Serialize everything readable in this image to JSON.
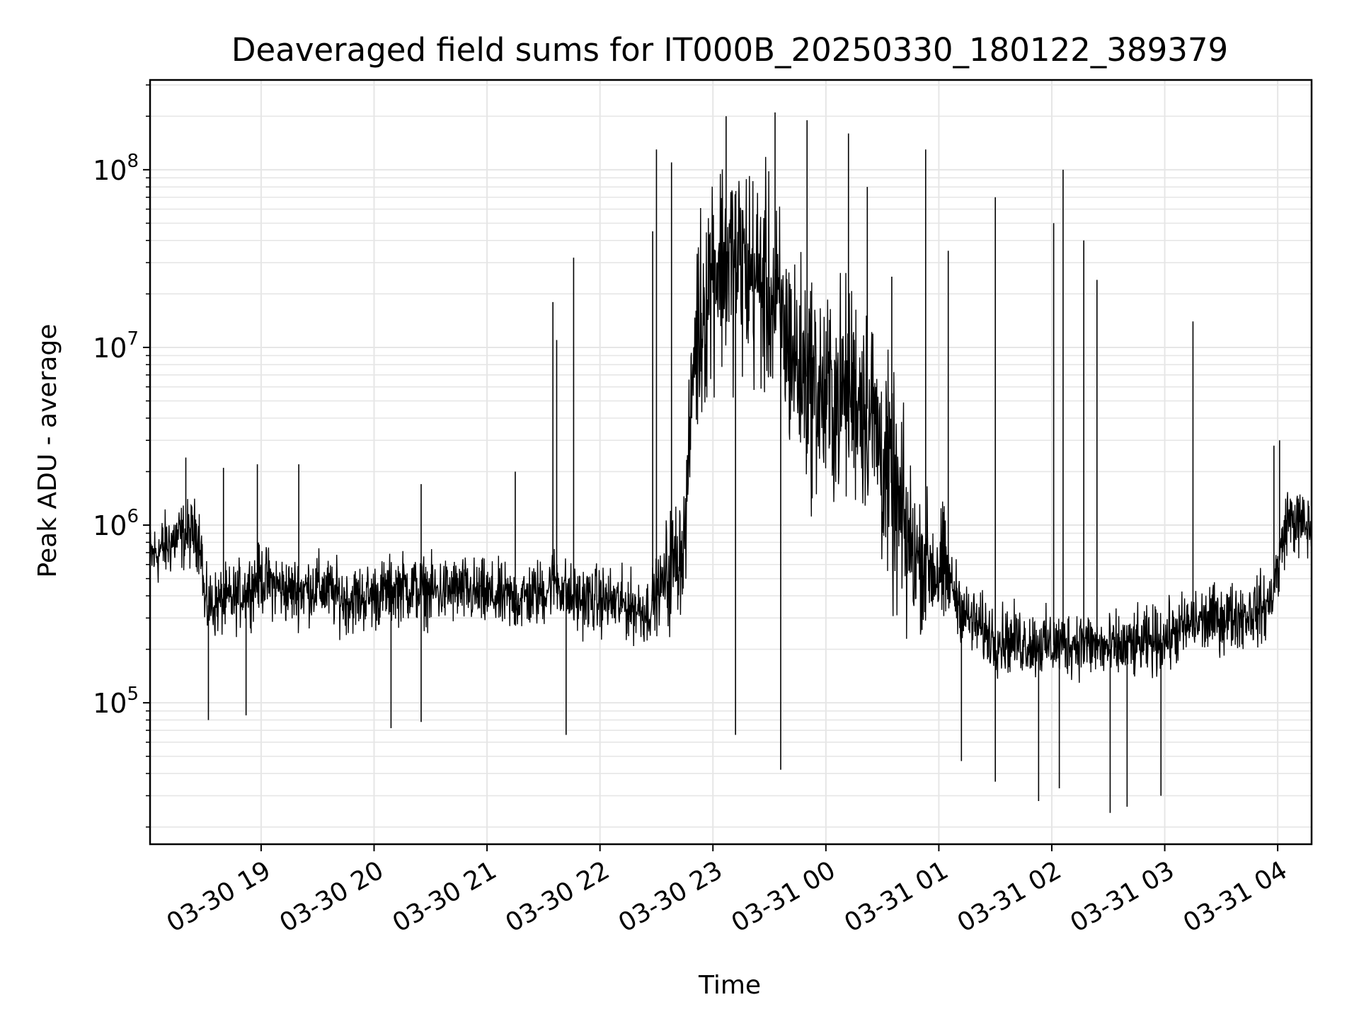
{
  "chart_data": {
    "type": "line",
    "title": "Deaveraged field sums for IT000B_20250330_180122_389379",
    "xlabel": "Time",
    "ylabel": "Peak ADU - average",
    "yscale": "log",
    "ylim": [
      16000,
      320000000
    ],
    "xlim": [
      "2025-03-30 18:01",
      "2025-03-31 04:18"
    ],
    "grid": true,
    "line_color": "#000000",
    "grid_color": "#e6e6e6",
    "x_ticks": [
      "03-30 19",
      "03-30 20",
      "03-30 21",
      "03-30 22",
      "03-30 23",
      "03-31 00",
      "03-31 01",
      "03-31 02",
      "03-31 03",
      "03-31 04"
    ],
    "y_ticks": [
      {
        "base": "10",
        "exp": "5",
        "value": 100000
      },
      {
        "base": "10",
        "exp": "6",
        "value": 1000000
      },
      {
        "base": "10",
        "exp": "7",
        "value": 10000000
      },
      {
        "base": "10",
        "exp": "8",
        "value": 100000000
      }
    ],
    "series": [
      {
        "x": [
          "2025-03-30 18:01",
          "2025-03-30 18:15",
          "2025-03-30 18:25",
          "2025-03-30 18:28",
          "2025-03-30 18:30",
          "2025-03-30 18:45",
          "2025-03-30 19:00",
          "2025-03-30 19:15",
          "2025-03-30 19:30",
          "2025-03-30 19:45",
          "2025-03-30 20:00",
          "2025-03-30 20:15",
          "2025-03-30 20:30",
          "2025-03-30 20:45",
          "2025-03-30 21:00",
          "2025-03-30 21:15",
          "2025-03-30 21:30",
          "2025-03-30 21:36",
          "2025-03-30 21:45",
          "2025-03-30 22:00",
          "2025-03-30 22:15",
          "2025-03-30 22:25",
          "2025-03-30 22:35",
          "2025-03-30 22:45",
          "2025-03-30 22:50",
          "2025-03-30 23:00",
          "2025-03-30 23:15",
          "2025-03-30 23:30",
          "2025-03-30 23:45",
          "2025-03-31 00:00",
          "2025-03-31 00:15",
          "2025-03-31 00:25",
          "2025-03-31 00:35",
          "2025-03-31 00:45",
          "2025-03-31 00:55",
          "2025-03-31 01:05",
          "2025-03-31 01:15",
          "2025-03-31 01:30",
          "2025-03-31 01:45",
          "2025-03-31 02:00",
          "2025-03-31 02:15",
          "2025-03-31 02:30",
          "2025-03-31 02:45",
          "2025-03-31 03:00",
          "2025-03-31 03:15",
          "2025-03-31 03:30",
          "2025-03-31 03:45",
          "2025-03-31 03:55",
          "2025-03-31 04:00",
          "2025-03-31 04:05",
          "2025-03-31 04:18"
        ],
        "y": [
          650000,
          850000,
          900000,
          850000,
          350000,
          380000,
          500000,
          420000,
          450000,
          380000,
          400000,
          450000,
          420000,
          430000,
          400000,
          380000,
          420000,
          500000,
          380000,
          380000,
          350000,
          330000,
          500000,
          800000,
          10000000,
          30000000,
          30000000,
          20000000,
          8000000,
          5000000,
          6000000,
          4000000,
          1500000,
          700000,
          600000,
          500000,
          300000,
          230000,
          220000,
          210000,
          220000,
          200000,
          210000,
          230000,
          280000,
          300000,
          320000,
          350000,
          550000,
          1100000,
          950000
        ],
        "spikes": [
          {
            "x": "2025-03-30 18:20",
            "y": 2400000
          },
          {
            "x": "2025-03-30 18:40",
            "y": 2100000
          },
          {
            "x": "2025-03-30 18:58",
            "y": 2200000
          },
          {
            "x": "2025-03-30 19:20",
            "y": 2200000
          },
          {
            "x": "2025-03-30 20:25",
            "y": 1700000
          },
          {
            "x": "2025-03-30 21:15",
            "y": 2000000
          },
          {
            "x": "2025-03-30 21:35",
            "y": 18000000
          },
          {
            "x": "2025-03-30 21:37",
            "y": 11000000
          },
          {
            "x": "2025-03-30 21:46",
            "y": 32000000
          },
          {
            "x": "2025-03-30 22:28",
            "y": 45000000
          },
          {
            "x": "2025-03-30 22:30",
            "y": 130000000
          },
          {
            "x": "2025-03-30 22:38",
            "y": 110000000
          },
          {
            "x": "2025-03-30 23:07",
            "y": 200000000
          },
          {
            "x": "2025-03-30 23:33",
            "y": 210000000
          },
          {
            "x": "2025-03-30 23:50",
            "y": 190000000
          },
          {
            "x": "2025-03-31 00:12",
            "y": 160000000
          },
          {
            "x": "2025-03-31 00:22",
            "y": 80000000
          },
          {
            "x": "2025-03-31 00:35",
            "y": 25000000
          },
          {
            "x": "2025-03-31 00:53",
            "y": 130000000
          },
          {
            "x": "2025-03-31 01:05",
            "y": 35000000
          },
          {
            "x": "2025-03-31 01:30",
            "y": 70000000
          },
          {
            "x": "2025-03-31 02:01",
            "y": 50000000
          },
          {
            "x": "2025-03-31 02:06",
            "y": 100000000
          },
          {
            "x": "2025-03-31 02:17",
            "y": 40000000
          },
          {
            "x": "2025-03-31 02:24",
            "y": 24000000
          },
          {
            "x": "2025-03-31 03:15",
            "y": 14000000
          },
          {
            "x": "2025-03-31 03:58",
            "y": 2800000
          },
          {
            "x": "2025-03-31 04:01",
            "y": 3000000
          }
        ],
        "dips": [
          {
            "x": "2025-03-30 18:32",
            "y": 80000
          },
          {
            "x": "2025-03-30 18:52",
            "y": 85000
          },
          {
            "x": "2025-03-30 20:09",
            "y": 72000
          },
          {
            "x": "2025-03-30 20:25",
            "y": 78000
          },
          {
            "x": "2025-03-30 21:42",
            "y": 66000
          },
          {
            "x": "2025-03-30 23:12",
            "y": 66000
          },
          {
            "x": "2025-03-30 23:36",
            "y": 42000
          },
          {
            "x": "2025-03-31 01:12",
            "y": 47000
          },
          {
            "x": "2025-03-31 01:30",
            "y": 36000
          },
          {
            "x": "2025-03-31 01:53",
            "y": 28000
          },
          {
            "x": "2025-03-31 02:04",
            "y": 33000
          },
          {
            "x": "2025-03-31 02:31",
            "y": 24000
          },
          {
            "x": "2025-03-31 02:40",
            "y": 26000
          },
          {
            "x": "2025-03-31 02:58",
            "y": 30000
          }
        ]
      }
    ]
  }
}
